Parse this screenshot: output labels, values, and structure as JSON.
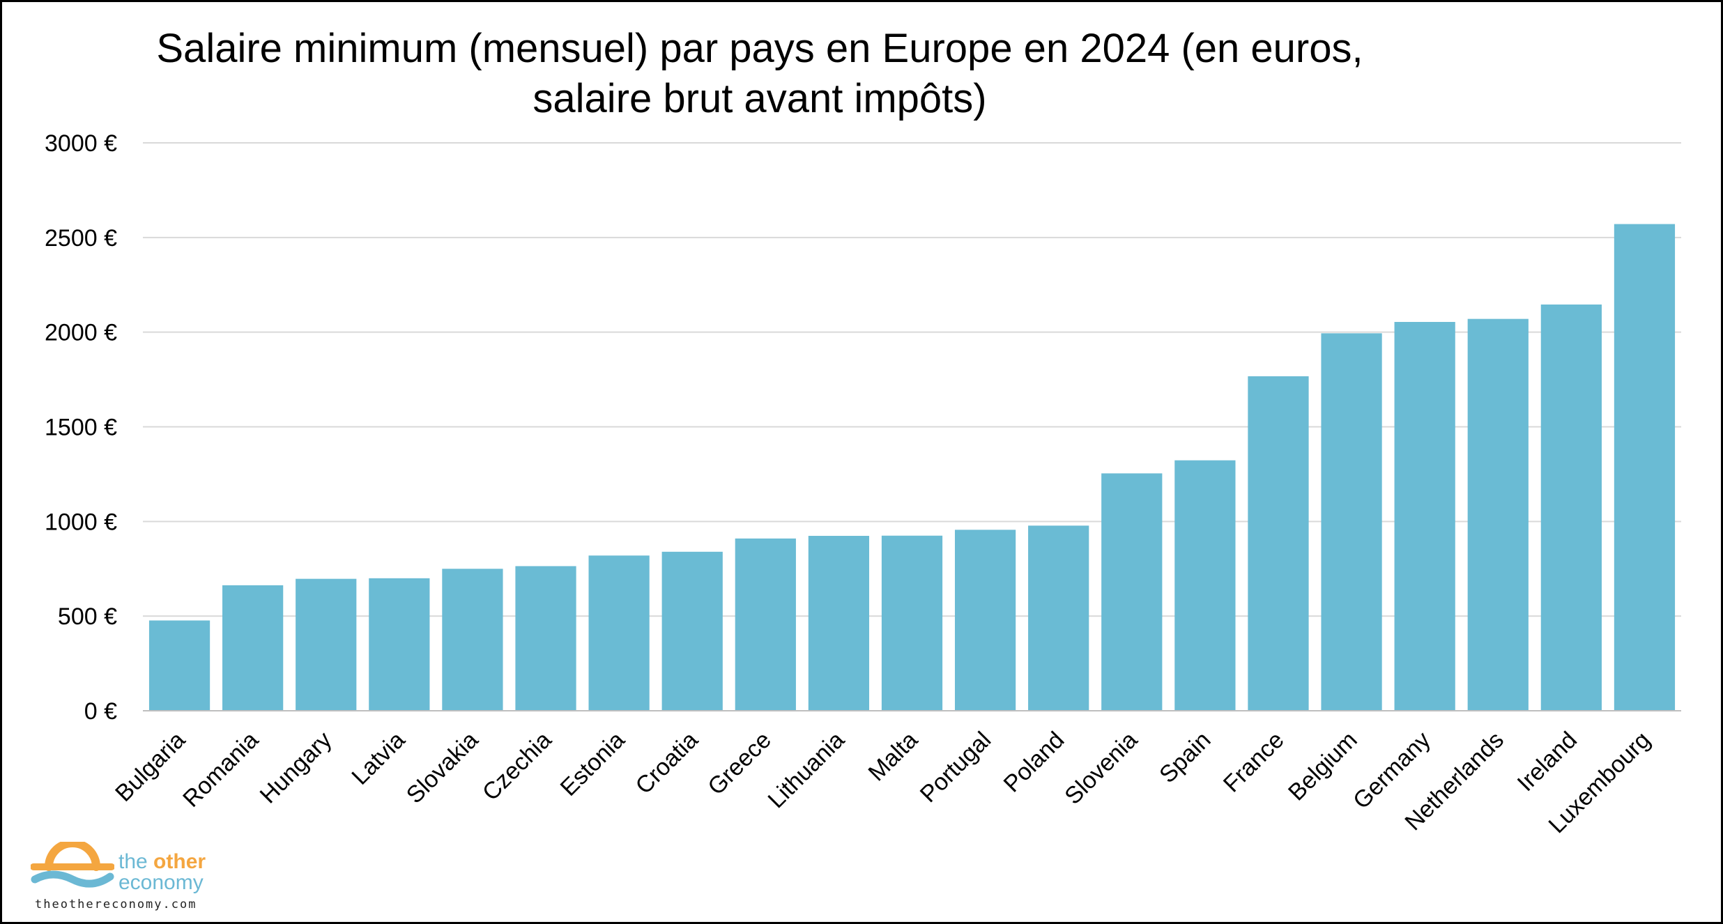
{
  "chart_data": {
    "type": "bar",
    "title": "Salaire minimum (mensuel) par pays en Europe en 2024 (en euros, salaire brut avant impôts)",
    "title_lines": [
      "Salaire minimum (mensuel) par pays en Europe en 2024 (en euros,",
      "salaire brut avant impôts)"
    ],
    "categories": [
      "Bulgaria",
      "Romania",
      "Hungary",
      "Latvia",
      "Slovakia",
      "Czechia",
      "Estonia",
      "Croatia",
      "Greece",
      "Lithuania",
      "Malta",
      "Portugal",
      "Poland",
      "Slovenia",
      "Spain",
      "France",
      "Belgium",
      "Germany",
      "Netherlands",
      "Ireland",
      "Luxembourg"
    ],
    "values": [
      477,
      663,
      697,
      700,
      750,
      764,
      820,
      840,
      910,
      924,
      925,
      956,
      978,
      1254,
      1323,
      1767,
      1994,
      2054,
      2070,
      2146,
      2571
    ],
    "ylim": [
      0,
      3000
    ],
    "yticks": [
      0,
      500,
      1000,
      1500,
      2000,
      2500,
      3000
    ],
    "ytick_labels": [
      "0 €",
      "500 €",
      "1000 €",
      "1500 €",
      "2000 €",
      "2500 €",
      "3000 €"
    ],
    "xlabel": "",
    "ylabel": "",
    "grid": true,
    "legend": "none",
    "colors": {
      "bar": "#6abbd4",
      "grid": "#d9d9d9",
      "axis": "#bfbfbf",
      "text": "#000000",
      "border": "#000000"
    }
  },
  "branding": {
    "logo_line1_pre": "the ",
    "logo_line1_emph": "other",
    "logo_line2": "economy",
    "url": "theothereconomy.com",
    "logo_icon": "sun-over-wave-icon",
    "colors": {
      "orange": "#f4a640",
      "blue": "#6bb8d4"
    }
  }
}
